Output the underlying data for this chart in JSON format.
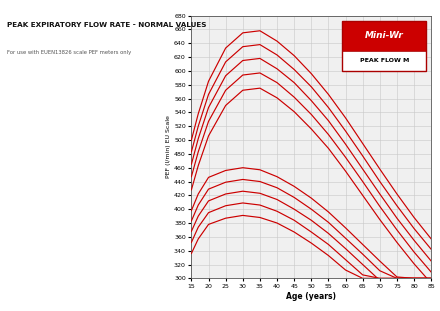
{
  "title": "PEAK EXPIRATORY FLOW RATE - NORMAL VALUES",
  "subtitle": "For use with EUEN13826 scale PEF meters only",
  "xlabel": "Age (years)",
  "ylabel": "PEF (l/min) EU Scale",
  "xlim": [
    15,
    85
  ],
  "ylim": [
    300,
    680
  ],
  "xticks": [
    15,
    20,
    25,
    30,
    35,
    40,
    45,
    50,
    55,
    60,
    65,
    70,
    75,
    80,
    85
  ],
  "yticks": [
    300,
    320,
    340,
    360,
    380,
    400,
    420,
    440,
    460,
    480,
    500,
    520,
    540,
    560,
    580,
    600,
    620,
    640,
    660,
    680
  ],
  "line_color": "#cc0000",
  "background_color": "#ffffff",
  "grid_color": "#c8c8c8",
  "plot_bg": "#f0f0f0",
  "male_curves_x": [
    15,
    17,
    20,
    25,
    30,
    35,
    40,
    45,
    50,
    55,
    60,
    65,
    70,
    75,
    80,
    85
  ],
  "male_curves_y": [
    [
      500,
      538,
      585,
      633,
      655,
      658,
      643,
      622,
      596,
      566,
      532,
      495,
      458,
      422,
      388,
      357
    ],
    [
      483,
      520,
      566,
      613,
      635,
      638,
      623,
      602,
      577,
      547,
      513,
      477,
      440,
      405,
      372,
      342
    ],
    [
      465,
      502,
      547,
      593,
      615,
      618,
      603,
      583,
      557,
      528,
      494,
      458,
      422,
      387,
      355,
      325
    ],
    [
      447,
      483,
      527,
      572,
      594,
      597,
      583,
      562,
      537,
      508,
      475,
      440,
      404,
      370,
      338,
      309
    ],
    [
      428,
      463,
      506,
      550,
      572,
      575,
      561,
      541,
      516,
      488,
      455,
      420,
      385,
      352,
      321,
      293
    ]
  ],
  "female_curves_x": [
    15,
    17,
    20,
    25,
    30,
    35,
    40,
    45,
    50,
    55,
    60,
    65,
    70,
    75,
    80,
    85
  ],
  "female_curves_y": [
    [
      398,
      422,
      446,
      456,
      460,
      457,
      447,
      433,
      416,
      396,
      373,
      349,
      325,
      302,
      300,
      300
    ],
    [
      383,
      406,
      429,
      439,
      443,
      440,
      431,
      417,
      400,
      381,
      358,
      335,
      311,
      300,
      300,
      300
    ],
    [
      368,
      390,
      412,
      422,
      426,
      423,
      414,
      400,
      384,
      365,
      343,
      320,
      297,
      300,
      300,
      300
    ],
    [
      352,
      374,
      395,
      405,
      409,
      406,
      397,
      384,
      367,
      349,
      327,
      305,
      300,
      300,
      300,
      300
    ],
    [
      336,
      357,
      378,
      387,
      391,
      388,
      380,
      367,
      351,
      333,
      312,
      300,
      300,
      300,
      300,
      300
    ]
  ]
}
